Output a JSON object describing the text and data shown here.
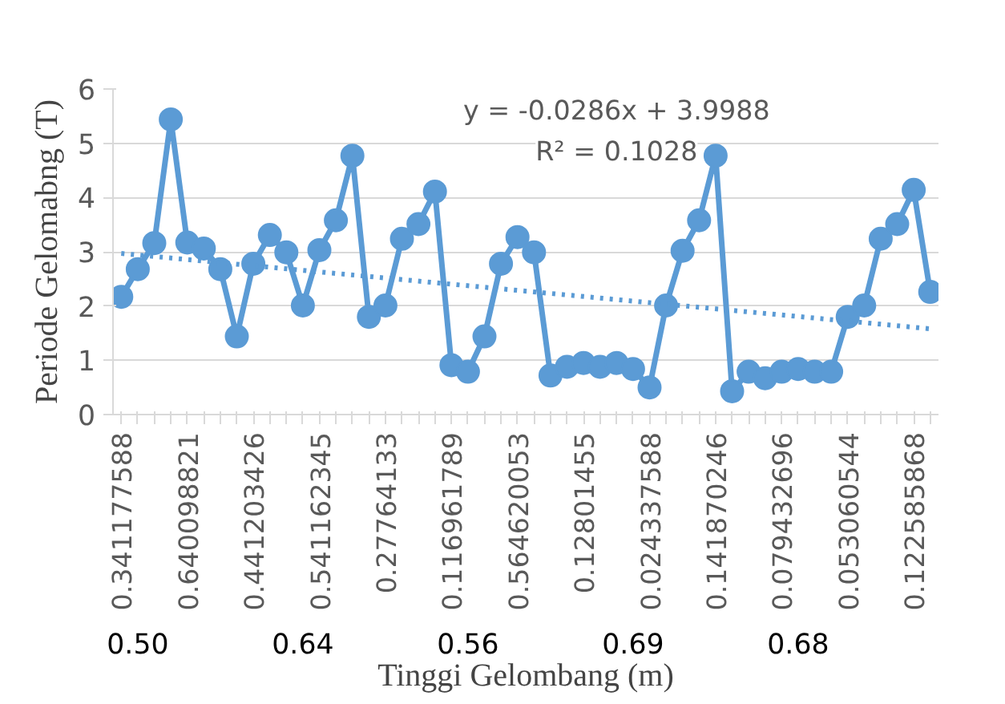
{
  "chart_data": {
    "type": "line",
    "xlabel": "Tinggi Gelombang (m)",
    "ylabel": "Periode Gelomabng (T)",
    "categories": [
      "0.341177588",
      null,
      null,
      null,
      "0.640098821",
      null,
      null,
      null,
      "0.441203426",
      null,
      null,
      null,
      "0.541162345",
      null,
      null,
      null,
      "0.27764133",
      null,
      null,
      null,
      "0.116961789",
      null,
      null,
      null,
      "0.564620053",
      null,
      null,
      null,
      "0.12801455",
      null,
      null,
      null,
      "0.024337588",
      null,
      null,
      null,
      "0.141870246",
      null,
      null,
      null,
      "0.079432696",
      null,
      null,
      null,
      "0.053060544",
      null,
      null,
      null,
      "0.122585868",
      null
    ],
    "series": [
      {
        "color": "#5b9bd5",
        "values": [
          2.17,
          2.68,
          3.16,
          5.44,
          3.17,
          3.06,
          2.68,
          1.44,
          2.78,
          3.31,
          2.99,
          2.01,
          3.03,
          3.58,
          4.77,
          1.8,
          2.01,
          3.24,
          3.51,
          4.11,
          0.91,
          0.79,
          1.44,
          2.78,
          3.27,
          2.99,
          0.72,
          0.88,
          0.95,
          0.88,
          0.95,
          0.84,
          0.5,
          2.01,
          3.02,
          3.58,
          4.77,
          0.43,
          0.79,
          0.67,
          0.79,
          0.84,
          0.79,
          0.79,
          1.8,
          2.01,
          3.24,
          3.51,
          4.14,
          2.26
        ],
        "marker": "circle",
        "line_style": "solid"
      },
      {
        "color": "#5b9bd5",
        "values": [
          2.97,
          null,
          null,
          null,
          null,
          null,
          null,
          null,
          null,
          null,
          null,
          null,
          null,
          null,
          null,
          null,
          null,
          null,
          null,
          null,
          null,
          null,
          null,
          null,
          null,
          null,
          null,
          null,
          null,
          null,
          null,
          null,
          null,
          null,
          null,
          null,
          null,
          null,
          null,
          null,
          null,
          null,
          null,
          null,
          null,
          null,
          null,
          null,
          null,
          1.58
        ],
        "marker": "none",
        "line_style": "dotted"
      }
    ],
    "ylim": [
      0,
      6
    ],
    "yticks": [
      0,
      1,
      2,
      3,
      4,
      5,
      6
    ],
    "grid": "y",
    "annotations": [
      "y = -0.0286x + 3.9988",
      "R² = 0.1028",
      "0.50",
      "0.64",
      "0.56",
      "0.69",
      "0.68"
    ]
  }
}
